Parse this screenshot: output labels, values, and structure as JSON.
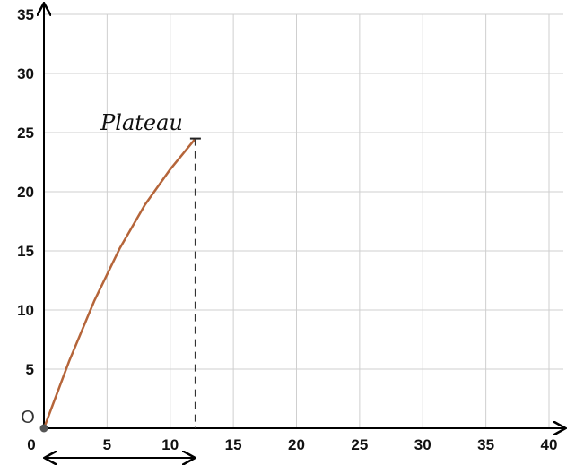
{
  "chart_data": {
    "type": "line",
    "title": "",
    "xlabel": "",
    "ylabel": "",
    "xlim": [
      0,
      40
    ],
    "ylim": [
      0,
      35
    ],
    "x_ticks": [
      5,
      10,
      15,
      20,
      25,
      30,
      35,
      40
    ],
    "y_ticks": [
      5,
      10,
      15,
      20,
      25,
      30,
      35
    ],
    "origin_label_x": "0",
    "origin_label_y": "O",
    "grid": true,
    "series": [
      {
        "color": "#b5653a",
        "x": [
          0,
          2,
          4,
          6,
          8,
          10,
          12
        ],
        "y": [
          0,
          5.7,
          10.8,
          15.2,
          18.9,
          21.9,
          24.5
        ]
      }
    ],
    "annotations": {
      "plateau": {
        "text": "Plateau",
        "x": 12,
        "y": 24.5
      },
      "dashed_drop": {
        "x": 12,
        "y_from": 24.5,
        "y_to": 0
      },
      "range_arrow": {
        "x_from": 0,
        "x_to": 12
      }
    }
  },
  "colors": {
    "curve": "#b5653a",
    "axis": "#000000",
    "grid": "#cfcfcf",
    "origin_point": "#555555"
  }
}
